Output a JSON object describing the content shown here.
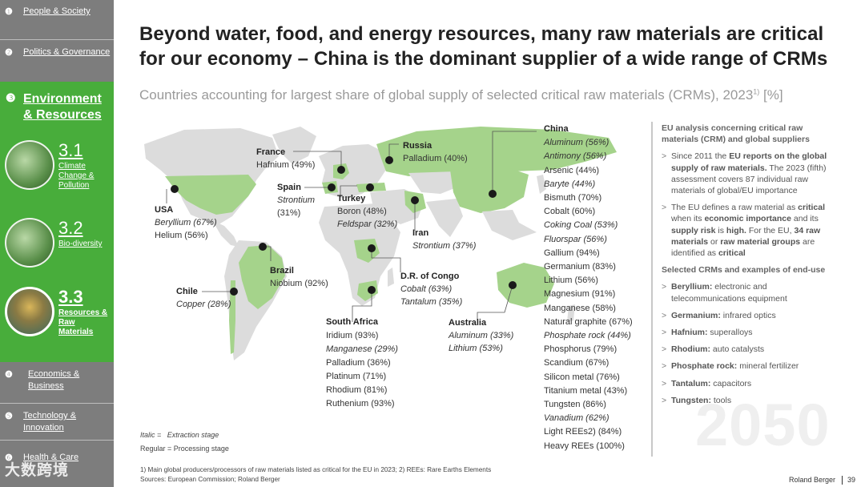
{
  "sidebar": {
    "nav": [
      {
        "num": "❶",
        "label": "People & Society"
      },
      {
        "num": "❷",
        "label": "Politics & Governance"
      },
      {
        "num": "❸",
        "label": "Environment & Resources"
      },
      {
        "num": "❹",
        "label": "Economics & Business"
      },
      {
        "num": "❺",
        "label": "Technology & Innovation"
      },
      {
        "num": "❻",
        "label": "Health & Care"
      }
    ],
    "subs": [
      {
        "num": "3.1",
        "label": "Climate Change & Pollution"
      },
      {
        "num": "3.2",
        "label": "Bio-diversity"
      },
      {
        "num": "3.3",
        "label": "Resources & Raw Materials"
      }
    ]
  },
  "header": {
    "title_line1": "Beyond water, food, and energy resources, many raw materials are critical",
    "title_line2": "for our economy – China is the dominant supplier of a wide range of CRMs",
    "subtitle": "Countries accounting for largest share of global supply of selected critical raw materials (CRMs), 2023",
    "subtitle_sup": "1)",
    "subtitle_unit": " [%]"
  },
  "map": {
    "france": {
      "name": "France",
      "items": [
        "Hafnium (49%)"
      ]
    },
    "russia": {
      "name": "Russia",
      "items": [
        "Palladium (40%)"
      ]
    },
    "spain": {
      "name": "Spain",
      "items": [
        "Strontium",
        "(31%)"
      ]
    },
    "turkey": {
      "name": "Turkey",
      "items": [
        "Boron (48%)",
        "Feldspar (32%)"
      ]
    },
    "usa": {
      "name": "USA",
      "items": [
        "Beryllium (67%)",
        "Helium (56%)"
      ]
    },
    "iran": {
      "name": "Iran",
      "items": [
        "Strontium (37%)"
      ]
    },
    "brazil": {
      "name": "Brazil",
      "items": [
        "Niobium (92%)"
      ]
    },
    "drc": {
      "name": "D.R. of Congo",
      "items": [
        "Cobalt (63%)",
        "Tantalum (35%)"
      ]
    },
    "chile": {
      "name": "Chile",
      "items": [
        "Copper (28%)"
      ]
    },
    "south_africa": {
      "name": "South Africa",
      "items": [
        "Iridium (93%)",
        "Manganese (29%)",
        "Palladium (36%)",
        "Platinum (71%)",
        "Rhodium (81%)",
        "Ruthenium (93%)"
      ]
    },
    "australia": {
      "name": "Australia",
      "items": [
        "Aluminum (33%)",
        "Lithium (53%)"
      ]
    }
  },
  "china": {
    "name": "China",
    "items": [
      {
        "text": "Aluminum (56%)",
        "italic": true
      },
      {
        "text": "Antimony (56%)",
        "italic": true
      },
      {
        "text": "Arsenic (44%)",
        "italic": false
      },
      {
        "text": "Baryte (44%)",
        "italic": true
      },
      {
        "text": "Bismuth (70%)",
        "italic": false
      },
      {
        "text": "Cobalt (60%)",
        "italic": false
      },
      {
        "text": "Coking Coal (53%)",
        "italic": true
      },
      {
        "text": "Fluorspar (56%)",
        "italic": true
      },
      {
        "text": "Gallium (94%)",
        "italic": false
      },
      {
        "text": "Germanium (83%)",
        "italic": false
      },
      {
        "text": "Lithium (56%)",
        "italic": false
      },
      {
        "text": "Magnesium (91%)",
        "italic": false
      },
      {
        "text": "Manganese (58%)",
        "italic": false
      },
      {
        "text": "Natural graphite (67%)",
        "italic": false
      },
      {
        "text": "Phosphate rock (44%)",
        "italic": true
      },
      {
        "text": "Phosphorus (79%)",
        "italic": false
      },
      {
        "text": "Scandium (67%)",
        "italic": false
      },
      {
        "text": "Silicon metal (76%)",
        "italic": false
      },
      {
        "text": "Titanium metal (43%)",
        "italic": false
      },
      {
        "text": "Tungsten (86%)",
        "italic": false
      },
      {
        "text": "Vanadium (62%)",
        "italic": true
      },
      {
        "text": "Light REEs2) (84%)",
        "italic": false
      },
      {
        "text": "Heavy REEs (100%)",
        "italic": false
      }
    ]
  },
  "panel": {
    "heading1": "EU analysis concerning critical raw materials (CRM) and global suppliers",
    "p1_a": "Since 2011 the ",
    "p1_b": "EU reports on the global supply of raw materials.",
    "p1_c": " The 2023 (fifth) assessment covers 87 individual raw materials of global/EU importance",
    "p2_a": "The EU defines a raw material as ",
    "p2_b": "critical",
    "p2_c": " when its ",
    "p2_d": "economic importance",
    "p2_e": " and its ",
    "p2_f": "supply risk",
    "p2_g": " is ",
    "p2_h": "high.",
    "p2_i": " For the EU, ",
    "p2_j": "34 raw materials",
    "p2_k": " or ",
    "p2_l": "raw material groups",
    "p2_m": " are identified as ",
    "p2_n": "critical",
    "heading2": "Selected CRMs and examples of end-use",
    "uses": [
      {
        "name": "Beryllium:",
        "use": " electronic and telecommunications equipment"
      },
      {
        "name": "Germanium:",
        "use": " infrared optics"
      },
      {
        "name": "Hafnium:",
        "use": " superalloys"
      },
      {
        "name": "Rhodium:",
        "use": " auto catalysts"
      },
      {
        "name": "Phosphate rock:",
        "use": " mineral fertilizer"
      },
      {
        "name": "Tantalum:",
        "use": " capacitors"
      },
      {
        "name": "Tungsten:",
        "use": " tools"
      }
    ],
    "year": "2050"
  },
  "legend": {
    "italic_key": "Italic =",
    "italic_val": "Extraction stage",
    "regular_key": "Regular =",
    "regular_val": "Processing stage"
  },
  "footer": {
    "note": "1) Main global producers/processors of raw materials listed as critical for the EU in 2023;  2) REEs: Rare Earths Elements",
    "sources": "Sources: European Commission; Roland Berger",
    "brand": "Roland Berger",
    "page": "39",
    "watermark": "大数跨境"
  },
  "colors": {
    "sidebar": "#7d7d7d",
    "accent": "#48ad3b",
    "land": "#dcdcdc",
    "highlight": "#a5d38b"
  }
}
